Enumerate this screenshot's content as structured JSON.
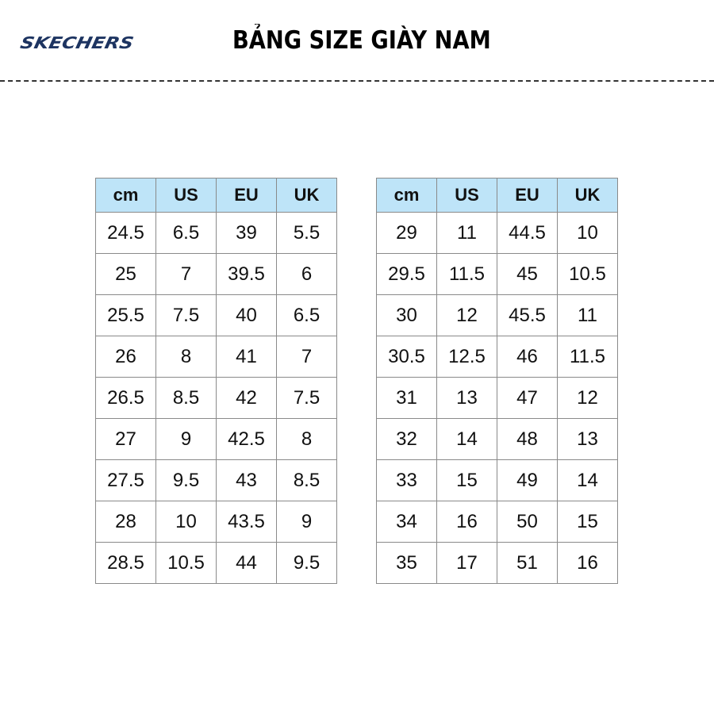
{
  "brand": {
    "logo_text": "SKECHERS",
    "color": "#1d3461"
  },
  "title": "BẢNG SIZE GIÀY NAM",
  "header_color": "#bee4f8",
  "columns": [
    "cm",
    "US",
    "EU",
    "UK"
  ],
  "left_table": [
    [
      "24.5",
      "6.5",
      "39",
      "5.5"
    ],
    [
      "25",
      "7",
      "39.5",
      "6"
    ],
    [
      "25.5",
      "7.5",
      "40",
      "6.5"
    ],
    [
      "26",
      "8",
      "41",
      "7"
    ],
    [
      "26.5",
      "8.5",
      "42",
      "7.5"
    ],
    [
      "27",
      "9",
      "42.5",
      "8"
    ],
    [
      "27.5",
      "9.5",
      "43",
      "8.5"
    ],
    [
      "28",
      "10",
      "43.5",
      "9"
    ],
    [
      "28.5",
      "10.5",
      "44",
      "9.5"
    ]
  ],
  "right_table": [
    [
      "29",
      "11",
      "44.5",
      "10"
    ],
    [
      "29.5",
      "11.5",
      "45",
      "10.5"
    ],
    [
      "30",
      "12",
      "45.5",
      "11"
    ],
    [
      "30.5",
      "12.5",
      "46",
      "11.5"
    ],
    [
      "31",
      "13",
      "47",
      "12"
    ],
    [
      "32",
      "14",
      "48",
      "13"
    ],
    [
      "33",
      "15",
      "49",
      "14"
    ],
    [
      "34",
      "16",
      "50",
      "15"
    ],
    [
      "35",
      "17",
      "51",
      "16"
    ]
  ]
}
